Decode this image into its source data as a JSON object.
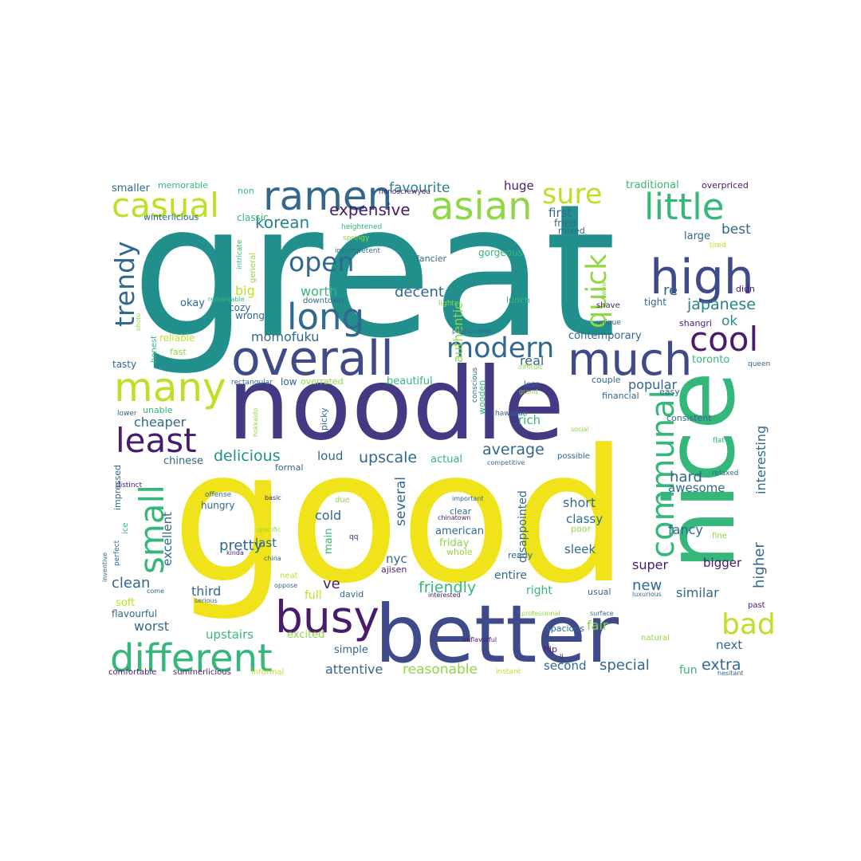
{
  "palette": {
    "teal": "#21908c",
    "yellow": "#f0e31a",
    "indigo": "#443983",
    "purple": "#481b6d",
    "blue": "#31688e",
    "green": "#35b779",
    "lime": "#8fd744",
    "lightyellow": "#bddf26",
    "darkblue": "#3e4a89",
    "seagreen": "#26828e"
  },
  "words": [
    {
      "text": "great",
      "color": "teal"
    },
    {
      "text": "good",
      "color": "yellow"
    },
    {
      "text": "noodle",
      "color": "indigo"
    },
    {
      "text": "nice",
      "color": "green"
    },
    {
      "text": "better",
      "color": "darkblue"
    },
    {
      "text": "overall",
      "color": "darkblue"
    },
    {
      "text": "busy",
      "color": "purple"
    },
    {
      "text": "different",
      "color": "green"
    },
    {
      "text": "ramen",
      "color": "blue"
    },
    {
      "text": "casual",
      "color": "lightyellow"
    },
    {
      "text": "asian",
      "color": "lime"
    },
    {
      "text": "little",
      "color": "green"
    },
    {
      "text": "high",
      "color": "darkblue"
    },
    {
      "text": "much",
      "color": "darkblue"
    },
    {
      "text": "many",
      "color": "lightyellow"
    },
    {
      "text": "long",
      "color": "blue"
    },
    {
      "text": "small",
      "color": "green"
    },
    {
      "text": "least",
      "color": "purple"
    },
    {
      "text": "communal",
      "color": "green"
    },
    {
      "text": "quick",
      "color": "lime"
    },
    {
      "text": "modern",
      "color": "blue"
    },
    {
      "text": "cool",
      "color": "purple"
    },
    {
      "text": "bad",
      "color": "lightyellow"
    },
    {
      "text": "sure",
      "color": "lightyellow"
    },
    {
      "text": "open",
      "color": "blue"
    },
    {
      "text": "trendy",
      "color": "blue"
    },
    {
      "text": "expensive",
      "color": "purple"
    },
    {
      "text": "korean",
      "color": "seagreen"
    },
    {
      "text": "favourite",
      "color": "seagreen"
    },
    {
      "text": "japanese",
      "color": "seagreen"
    },
    {
      "text": "momofuku",
      "color": "blue"
    },
    {
      "text": "delicious",
      "color": "teal"
    },
    {
      "text": "upscale",
      "color": "blue"
    },
    {
      "text": "average",
      "color": "blue"
    },
    {
      "text": "friendly",
      "color": "green"
    },
    {
      "text": "reasonable",
      "color": "lime"
    },
    {
      "text": "special",
      "color": "blue"
    },
    {
      "text": "extra",
      "color": "blue"
    },
    {
      "text": "interesting",
      "color": "blue"
    },
    {
      "text": "higher",
      "color": "blue"
    },
    {
      "text": "clean",
      "color": "blue"
    },
    {
      "text": "worst",
      "color": "blue"
    },
    {
      "text": "upstairs",
      "color": "green"
    },
    {
      "text": "attentive",
      "color": "blue"
    },
    {
      "text": "pretty",
      "color": "blue"
    },
    {
      "text": "several",
      "color": "blue"
    },
    {
      "text": "cheaper",
      "color": "blue"
    },
    {
      "text": "authentic",
      "color": "lime"
    },
    {
      "text": "decent",
      "color": "blue"
    },
    {
      "text": "popular",
      "color": "blue"
    },
    {
      "text": "new",
      "color": "blue"
    },
    {
      "text": "fancy",
      "color": "blue"
    },
    {
      "text": "similar",
      "color": "blue"
    },
    {
      "text": "hard",
      "color": "blue"
    },
    {
      "text": "awesome",
      "color": "blue"
    },
    {
      "text": "short",
      "color": "blue"
    },
    {
      "text": "classy",
      "color": "blue"
    },
    {
      "text": "sleek",
      "color": "blue"
    },
    {
      "text": "super",
      "color": "purple"
    },
    {
      "text": "bigger",
      "color": "purple"
    },
    {
      "text": "next",
      "color": "blue"
    },
    {
      "text": "second",
      "color": "blue"
    },
    {
      "text": "fair",
      "color": "lime"
    },
    {
      "text": "best",
      "color": "blue"
    },
    {
      "text": "large",
      "color": "blue"
    },
    {
      "text": "first",
      "color": "blue"
    },
    {
      "text": "huge",
      "color": "purple"
    },
    {
      "text": "ok",
      "color": "teal"
    },
    {
      "text": "re",
      "color": "blue"
    },
    {
      "text": "big",
      "color": "lightyellow"
    },
    {
      "text": "worth",
      "color": "green"
    },
    {
      "text": "okay",
      "color": "blue"
    },
    {
      "text": "excellent",
      "color": "blue"
    },
    {
      "text": "last",
      "color": "blue"
    },
    {
      "text": "cold",
      "color": "blue"
    },
    {
      "text": "ve",
      "color": "purple"
    },
    {
      "text": "third",
      "color": "blue"
    },
    {
      "text": "nyc",
      "color": "blue"
    },
    {
      "text": "american",
      "color": "blue"
    },
    {
      "text": "friday",
      "color": "lime"
    },
    {
      "text": "real",
      "color": "blue"
    },
    {
      "text": "rich",
      "color": "green"
    },
    {
      "text": "chinese",
      "color": "blue"
    },
    {
      "text": "loud",
      "color": "blue"
    },
    {
      "text": "actual",
      "color": "green"
    },
    {
      "text": "main",
      "color": "green"
    },
    {
      "text": "entire",
      "color": "blue"
    },
    {
      "text": "right",
      "color": "green"
    },
    {
      "text": "full",
      "color": "lightyellow"
    },
    {
      "text": "soft",
      "color": "lightyellow"
    },
    {
      "text": "flavourful",
      "color": "blue"
    },
    {
      "text": "excited",
      "color": "lime"
    },
    {
      "text": "simple",
      "color": "blue"
    },
    {
      "text": "fun",
      "color": "green"
    },
    {
      "text": "traditional",
      "color": "green"
    },
    {
      "text": "overpriced",
      "color": "purple"
    },
    {
      "text": "smaller",
      "color": "blue"
    },
    {
      "text": "memorable",
      "color": "green"
    },
    {
      "text": "non",
      "color": "green"
    },
    {
      "text": "nonoscrewyou",
      "color": "purple"
    },
    {
      "text": "winterlicious",
      "color": "blue"
    },
    {
      "text": "classic",
      "color": "green"
    },
    {
      "text": "heightened",
      "color": "green"
    },
    {
      "text": "springy",
      "color": "lime"
    },
    {
      "text": "mixed",
      "color": "blue"
    },
    {
      "text": "fried",
      "color": "blue"
    },
    {
      "text": "incompetent",
      "color": "blue"
    },
    {
      "text": "intricate",
      "color": "green"
    },
    {
      "text": "general",
      "color": "lime"
    },
    {
      "text": "fancier",
      "color": "blue"
    },
    {
      "text": "gorgeous",
      "color": "green"
    },
    {
      "text": "tired",
      "color": "lightyellow"
    },
    {
      "text": "didn",
      "color": "purple"
    },
    {
      "text": "wow",
      "color": "lime"
    },
    {
      "text": "remarkable",
      "color": "green"
    },
    {
      "text": "cozy",
      "color": "blue"
    },
    {
      "text": "wrong",
      "color": "blue"
    },
    {
      "text": "downtown",
      "color": "blue"
    },
    {
      "text": "lighter",
      "color": "lime"
    },
    {
      "text": "lunch",
      "color": "green"
    },
    {
      "text": "shave",
      "color": "purple"
    },
    {
      "text": "tight",
      "color": "blue"
    },
    {
      "text": "unique",
      "color": "blue"
    },
    {
      "text": "shangri",
      "color": "purple"
    },
    {
      "text": "honest",
      "color": "green"
    },
    {
      "text": "shoto",
      "color": "lime"
    },
    {
      "text": "reliable",
      "color": "lightyellow"
    },
    {
      "text": "phenomenal",
      "color": "blue"
    },
    {
      "text": "contemporary",
      "color": "blue"
    },
    {
      "text": "fast",
      "color": "lime"
    },
    {
      "text": "tasty",
      "color": "blue"
    },
    {
      "text": "difficult",
      "color": "lime"
    },
    {
      "text": "toronto",
      "color": "green"
    },
    {
      "text": "queen",
      "color": "blue"
    },
    {
      "text": "couple",
      "color": "blue"
    },
    {
      "text": "low",
      "color": "blue"
    },
    {
      "text": "overrated",
      "color": "lime"
    },
    {
      "text": "rectangular",
      "color": "blue"
    },
    {
      "text": "conscious",
      "color": "blue"
    },
    {
      "text": "less",
      "color": "blue"
    },
    {
      "text": "grand",
      "color": "lime"
    },
    {
      "text": "beautiful",
      "color": "green"
    },
    {
      "text": "easy",
      "color": "blue"
    },
    {
      "text": "financial",
      "color": "blue"
    },
    {
      "text": "unable",
      "color": "green"
    },
    {
      "text": "lower",
      "color": "blue"
    },
    {
      "text": "hokkaido",
      "color": "lime"
    },
    {
      "text": "picky",
      "color": "blue"
    },
    {
      "text": "wooden",
      "color": "green"
    },
    {
      "text": "hawaiian",
      "color": "blue"
    },
    {
      "text": "consistent",
      "color": "blue"
    },
    {
      "text": "social",
      "color": "lime"
    },
    {
      "text": "flat",
      "color": "green"
    },
    {
      "text": "competitive",
      "color": "blue"
    },
    {
      "text": "possible",
      "color": "blue"
    },
    {
      "text": "formal",
      "color": "blue"
    },
    {
      "text": "distinct",
      "color": "purple"
    },
    {
      "text": "impressed",
      "color": "blue"
    },
    {
      "text": "offense",
      "color": "blue"
    },
    {
      "text": "relaxed",
      "color": "blue"
    },
    {
      "text": "important",
      "color": "blue"
    },
    {
      "text": "due",
      "color": "lime"
    },
    {
      "text": "disappointed",
      "color": "blue"
    },
    {
      "text": "hungry",
      "color": "blue"
    },
    {
      "text": "basic",
      "color": "purple"
    },
    {
      "text": "clear",
      "color": "blue"
    },
    {
      "text": "chinatown",
      "color": "purple"
    },
    {
      "text": "ice",
      "color": "green"
    },
    {
      "text": "perfect",
      "color": "blue"
    },
    {
      "text": "specific",
      "color": "lime"
    },
    {
      "text": "qq",
      "color": "purple"
    },
    {
      "text": "poor",
      "color": "lime"
    },
    {
      "text": "fine",
      "color": "lime"
    },
    {
      "text": "kinda",
      "color": "purple"
    },
    {
      "text": "whole",
      "color": "lime"
    },
    {
      "text": "ready",
      "color": "blue"
    },
    {
      "text": "inventive",
      "color": "blue"
    },
    {
      "text": "china",
      "color": "blue"
    },
    {
      "text": "neat",
      "color": "lightyellow"
    },
    {
      "text": "ajisen",
      "color": "purple"
    },
    {
      "text": "oppose",
      "color": "blue"
    },
    {
      "text": "come",
      "color": "blue"
    },
    {
      "text": "david",
      "color": "blue"
    },
    {
      "text": "serious",
      "color": "blue"
    },
    {
      "text": "interested",
      "color": "purple"
    },
    {
      "text": "usual",
      "color": "blue"
    },
    {
      "text": "luxurious",
      "color": "blue"
    },
    {
      "text": "past",
      "color": "purple"
    },
    {
      "text": "professional",
      "color": "lime"
    },
    {
      "text": "surface",
      "color": "blue"
    },
    {
      "text": "unflavorful",
      "color": "purple"
    },
    {
      "text": "spacious",
      "color": "blue"
    },
    {
      "text": "natural",
      "color": "lime"
    },
    {
      "text": "hip",
      "color": "purple"
    },
    {
      "text": "ll",
      "color": "purple"
    },
    {
      "text": "comfortable",
      "color": "purple"
    },
    {
      "text": "summerlicious",
      "color": "purple"
    },
    {
      "text": "informal",
      "color": "lightyellow"
    },
    {
      "text": "instant",
      "color": "lightyellow"
    },
    {
      "text": "hesitant",
      "color": "blue"
    }
  ]
}
